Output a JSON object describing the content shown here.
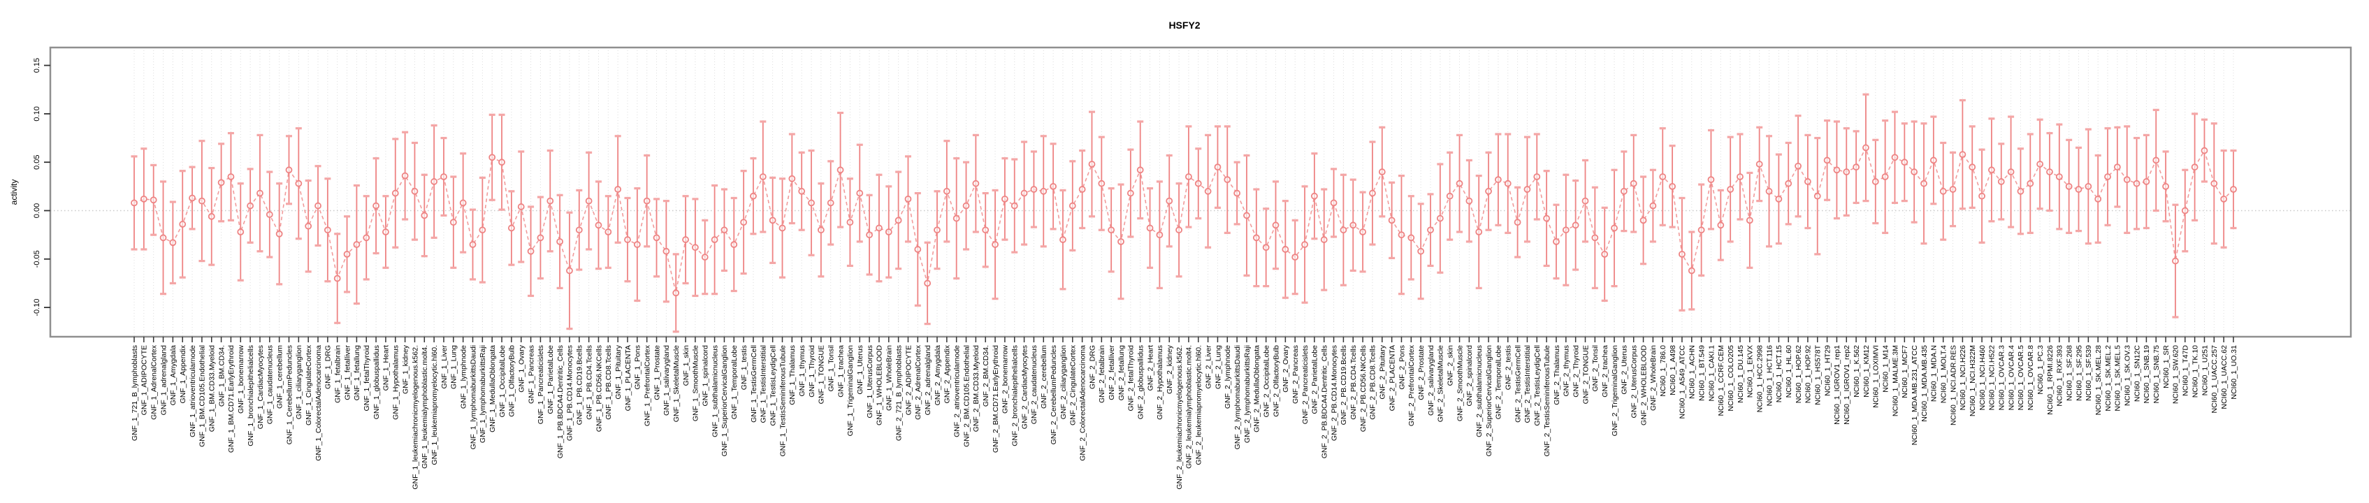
{
  "chart_data": {
    "type": "line",
    "subtype": "point-errorbar-series",
    "title": "HSFY2",
    "ylabel": "activity",
    "xlabel": "",
    "ylim": [
      -0.13,
      0.168
    ],
    "yticks": [
      0.15,
      0.1,
      0.05,
      0.0,
      -0.05,
      -0.1
    ],
    "grid": "dotted vertical line per category; dotted horizontal line at zero",
    "legend": "none",
    "point_color": "#ee8383",
    "cap_color": "#f4a6a6",
    "line_color": "#f19b9b",
    "border_color": "#8f8f8f",
    "grid_color": "#dcdcdc",
    "groups": [
      {
        "prefix": "GNF_1_",
        "names": [
          "721_B_lymphoblasts",
          "ADIPOCYTE",
          "AdrenalCortex",
          "adrenalgland",
          "Amygdala",
          "Appendix",
          "atrioventricularnode",
          "BM.CD105.Endothelial",
          "BM.CD33.Myeloid",
          "BM.CD34.",
          "BM.CD71.EarlyErythroid",
          "bonemarrow",
          "bronchialepithelialcells",
          "CardiacMyocytes",
          "caudatenucleus",
          "cerebellum",
          "CerebellumPeduncles",
          "ciliaryganglion",
          "CingulateCortex",
          "ColorectalAdenocarcinoma",
          "DRG",
          "fetalbrain",
          "fetalliver",
          "fetallung",
          "fetalThyroid",
          "globuspallidus",
          "Heart",
          "Hypothalamus",
          "kidney",
          "leukemiachronicmyelogenous.k562.",
          "leukemialymphoblastic.molt4.",
          "leukemiapromyelocytic.hl60.",
          "Liver",
          "Lung",
          "lymphnode",
          "lymphomaburkittsDaudi",
          "lymphomaburkittsRaji",
          "MedullaOblongata",
          "OccipitalLobe",
          "OlfactoryBulb",
          "Ovary",
          "Pancreas",
          "Pancreaticislets",
          "ParietalLobe",
          "PB.BDCA4.Dentritic_Cells",
          "PB.CD14.Monocytes",
          "PB.CD19.Bcells",
          "PB.CD4.Tcells",
          "PB.CD56.NKCells",
          "PB.CD8.Tcells",
          "Pituitary",
          "PLACENTA",
          "Pons",
          "PrefrontalCortex",
          "Prostate",
          "salivarygland",
          "SkeletalMuscle",
          "skin",
          "SmoothMuscle",
          "spinalcord",
          "subthalamicnucleus",
          "SuperiorCervicalGanglion",
          "TemporalLobe",
          "testis",
          "TestisGermCell",
          "TestisInterstitial",
          "TestisLeydigCell",
          "TestisSeminiferousTubule",
          "Thalamus",
          "thymus",
          "Thyroid",
          "TONGUE",
          "Tonsil",
          "trachea",
          "TrigeminalGanglion",
          "Uterus",
          "UterusCorpus",
          "WHOLEBLOOD",
          "WholeBrain"
        ],
        "means": [
          0.008,
          0.012,
          0.011,
          -0.028,
          -0.033,
          -0.014,
          0.013,
          0.01,
          -0.006,
          0.029,
          0.035,
          -0.022,
          0.005,
          0.018,
          -0.004,
          -0.024,
          0.042,
          0.028,
          -0.016,
          0.005,
          -0.02,
          -0.07,
          -0.045,
          -0.035,
          -0.028,
          0.005,
          -0.022,
          0.018,
          0.036,
          0.02,
          -0.005,
          0.03,
          0.035,
          -0.012,
          0.008,
          -0.035,
          -0.02,
          0.055,
          0.05,
          -0.018,
          0.004,
          -0.042,
          -0.028,
          0.01,
          -0.032,
          -0.062,
          -0.02,
          0.01,
          -0.015,
          -0.022,
          0.022,
          -0.03,
          -0.035,
          0.01,
          -0.028,
          -0.042,
          -0.085,
          -0.03,
          -0.038,
          -0.048,
          -0.03,
          -0.02,
          -0.035,
          -0.012,
          0.015,
          0.035,
          -0.01,
          -0.018,
          0.033,
          0.02,
          0.008,
          -0.02,
          0.008,
          0.042,
          -0.012,
          0.018,
          -0.025,
          -0.018,
          -0.022
        ],
        "errors": [
          0.048,
          0.052,
          0.036,
          0.058,
          0.042,
          0.055,
          0.032,
          0.062,
          0.05,
          0.04,
          0.045,
          0.05,
          0.038,
          0.06,
          0.044,
          0.052,
          0.035,
          0.057,
          0.047,
          0.041,
          0.053,
          0.046,
          0.039,
          0.061,
          0.043,
          0.049,
          0.037,
          0.056,
          0.045,
          0.05,
          0.042,
          0.058,
          0.04,
          0.047,
          0.051,
          0.036,
          0.054,
          0.044,
          0.049,
          0.038,
          0.057,
          0.046,
          0.042,
          0.052,
          0.048,
          0.06,
          0.041,
          0.05,
          0.045,
          0.037,
          0.055,
          0.043,
          0.058,
          0.047,
          0.04,
          0.052,
          0.04,
          0.045,
          0.05,
          0.038,
          0.056,
          0.042,
          0.048,
          0.053,
          0.039,
          0.057,
          0.044,
          0.051,
          0.046,
          0.04,
          0.054,
          0.048,
          0.043,
          0.059,
          0.045,
          0.05,
          0.041,
          0.055,
          0.047
        ]
      },
      {
        "prefix": "GNF_2_",
        "names": [
          "721_B_lymphoblasts",
          "ADIPOCYTE",
          "AdrenalCortex",
          "adrenalgland",
          "Amygdala",
          "Appendix",
          "atrioventricularnode",
          "BM.CD105.Endothelial",
          "BM.CD33.Myeloid",
          "BM.CD34.",
          "BM.CD71.EarlyErythroid",
          "bonemarrow",
          "bronchialepithelialcells",
          "CardiacMyocytes",
          "caudatenucleus",
          "cerebellum",
          "CerebellumPeduncles",
          "ciliaryganglion",
          "CingulateCortex",
          "ColorectalAdenocarcinoma",
          "DRG",
          "fetalbrain",
          "fetalliver",
          "fetallung",
          "fetalThyroid",
          "globuspallidus",
          "Heart",
          "Hypothalamus",
          "kidney",
          "leukemiachronicmyelogenous.k562.",
          "leukemialymphoblastic.molt4.",
          "leukemiapromyelocytic.hl60.",
          "Liver",
          "Lung",
          "lymphnode",
          "lymphomaburkittsDaudi",
          "lymphomaburkittsRaji",
          "MedullaOblongata",
          "OccipitalLobe",
          "OlfactoryBulb",
          "Ovary",
          "Pancreas",
          "Pancreaticislets",
          "ParietalLobe",
          "PB.BDCA4.Dentritic_Cells",
          "PB.CD14.Monocytes",
          "PB.CD19.Bcells",
          "PB.CD4.Tcells",
          "PB.CD56.NKCells",
          "PB.CD8.Tcells",
          "Pituitary",
          "PLACENTA",
          "Pons",
          "PrefrontalCortex",
          "Prostate",
          "salivarygland",
          "SkeletalMuscle",
          "skin",
          "SmoothMuscle",
          "spinalcord",
          "subthalamicnucleus",
          "SuperiorCervicalGanglion",
          "TemporalLobe",
          "testis",
          "TestisGermCell",
          "TestisInterstitial",
          "TestisLeydigCell",
          "TestisSeminiferousTubule",
          "Thalamus",
          "thymus",
          "Thyroid",
          "TONGUE",
          "Tonsil",
          "trachea",
          "TrigeminalGanglion",
          "Uterus",
          "UterusCorpus",
          "WHOLEBLOOD",
          "WholeBrain"
        ],
        "means": [
          -0.01,
          0.012,
          -0.04,
          -0.075,
          -0.02,
          0.02,
          -0.008,
          0.005,
          0.028,
          -0.02,
          -0.035,
          0.012,
          0.005,
          0.018,
          0.022,
          0.02,
          0.025,
          -0.03,
          0.005,
          0.022,
          0.048,
          0.028,
          -0.02,
          -0.032,
          0.018,
          0.042,
          -0.018,
          -0.025,
          0.01,
          -0.02,
          0.035,
          0.028,
          0.02,
          0.045,
          0.032,
          0.018,
          -0.005,
          -0.028,
          -0.038,
          -0.015,
          -0.04,
          -0.048,
          -0.035,
          0.015,
          -0.03,
          0.008,
          -0.02,
          -0.015,
          -0.022,
          0.018,
          0.04,
          -0.01,
          -0.025,
          -0.028,
          -0.042,
          -0.02,
          -0.008,
          0.015,
          0.028,
          0.01,
          -0.022,
          0.02,
          0.032,
          0.028,
          -0.012,
          0.022,
          0.035,
          -0.008,
          -0.032,
          -0.02,
          -0.015,
          0.01,
          -0.028,
          -0.045,
          -0.018,
          0.02,
          0.028,
          -0.01,
          0.005
        ],
        "errors": [
          0.05,
          0.044,
          0.058,
          0.042,
          0.04,
          0.052,
          0.062,
          0.045,
          0.05,
          0.038,
          0.056,
          0.042,
          0.048,
          0.053,
          0.039,
          0.057,
          0.044,
          0.051,
          0.046,
          0.04,
          0.054,
          0.048,
          0.043,
          0.059,
          0.045,
          0.05,
          0.041,
          0.055,
          0.047,
          0.048,
          0.052,
          0.036,
          0.058,
          0.042,
          0.055,
          0.032,
          0.062,
          0.05,
          0.04,
          0.045,
          0.05,
          0.038,
          0.06,
          0.044,
          0.052,
          0.035,
          0.057,
          0.047,
          0.041,
          0.053,
          0.046,
          0.039,
          0.061,
          0.043,
          0.049,
          0.037,
          0.056,
          0.045,
          0.05,
          0.042,
          0.058,
          0.04,
          0.047,
          0.051,
          0.036,
          0.054,
          0.044,
          0.049,
          0.038,
          0.057,
          0.046,
          0.042,
          0.052,
          0.048,
          0.06,
          0.041,
          0.05,
          0.045,
          0.037
        ]
      },
      {
        "prefix": "NCI60_1_",
        "names": [
          "786.0",
          "A498",
          "A549_ATCC",
          "ACHN",
          "BT.549",
          "CAKI.1",
          "CCRF.CEM",
          "COLO205",
          "DU.145",
          "EKVX",
          "HCC.2998",
          "HCT.116",
          "HCT.15",
          "HL.60",
          "HOP.62",
          "HOP.92",
          "HS578T",
          "HT29",
          "IGROV1_rep1",
          "IGROV1_rep2",
          "K.562",
          "KM12",
          "LOXIMVI",
          "M14",
          "MALME.3M",
          "MCF7",
          "MDA.MB.231_ATCC",
          "MDA.MB.435",
          "MDA.N",
          "MOLT.4",
          "NCI.ADR.RES",
          "NCI.H226",
          "NCI.H322M",
          "NCI.H460",
          "NCI.H522",
          "OVCAR.3",
          "OVCAR.4",
          "OVCAR.5",
          "OVCAR.8",
          "PC.3",
          "RPMI.8226",
          "RXF.393",
          "SF.268",
          "SF.295",
          "SF.539",
          "SK.MEL.28",
          "SK.MEL.2",
          "SK.MEL.5",
          "SK.OV.3",
          "SN12C",
          "SNB.19",
          "SNB.75",
          "SR",
          "SW.620",
          "T47D",
          "TK.10",
          "U251",
          "UACC.257",
          "UACC.62",
          "UO.31"
        ],
        "means": [
          0.035,
          0.025,
          -0.045,
          -0.062,
          -0.02,
          0.032,
          -0.015,
          0.022,
          0.035,
          -0.01,
          0.048,
          0.02,
          0.012,
          0.028,
          0.046,
          0.03,
          0.015,
          0.052,
          0.042,
          0.04,
          0.045,
          0.065,
          0.03,
          0.035,
          0.055,
          0.05,
          0.04,
          0.028,
          0.052,
          0.02,
          0.022,
          0.058,
          0.045,
          0.015,
          0.042,
          0.03,
          0.04,
          0.02,
          0.028,
          0.048,
          0.04,
          0.035,
          0.025,
          0.022,
          0.025,
          0.012,
          0.035,
          0.045,
          0.032,
          0.028,
          0.03,
          0.052,
          0.025,
          -0.052,
          0.0,
          0.045,
          0.062,
          0.028,
          0.012,
          0.022
        ],
        "errors": [
          0.05,
          0.042,
          0.058,
          0.04,
          0.047,
          0.051,
          0.036,
          0.054,
          0.044,
          0.049,
          0.038,
          0.057,
          0.046,
          0.042,
          0.052,
          0.048,
          0.06,
          0.041,
          0.05,
          0.045,
          0.037,
          0.055,
          0.043,
          0.058,
          0.047,
          0.04,
          0.052,
          0.062,
          0.045,
          0.05,
          0.038,
          0.056,
          0.042,
          0.048,
          0.053,
          0.039,
          0.057,
          0.044,
          0.051,
          0.046,
          0.04,
          0.054,
          0.048,
          0.043,
          0.059,
          0.045,
          0.05,
          0.041,
          0.055,
          0.047,
          0.048,
          0.052,
          0.036,
          0.058,
          0.042,
          0.055,
          0.032,
          0.062,
          0.05,
          0.04
        ]
      }
    ]
  }
}
